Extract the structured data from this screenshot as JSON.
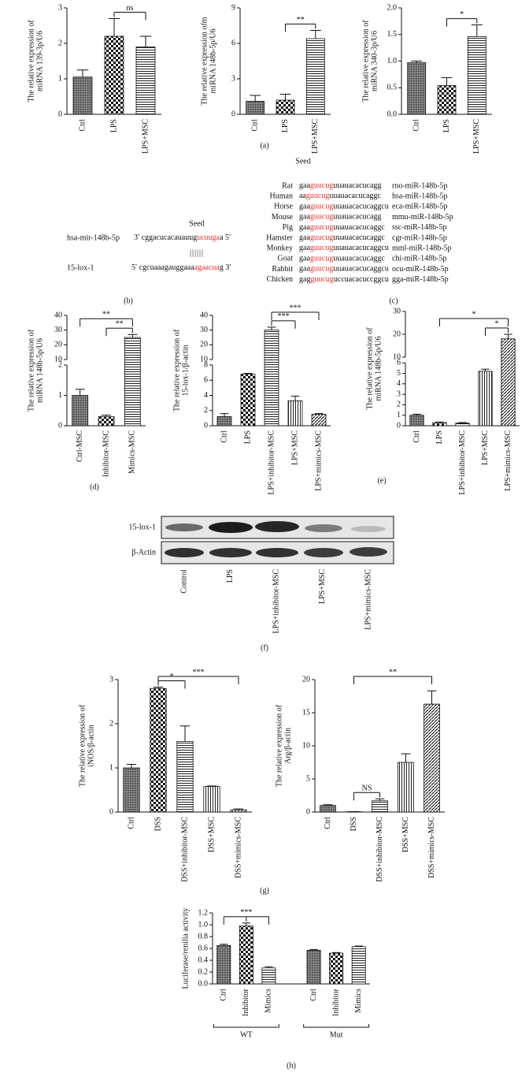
{
  "chart_data": [
    {
      "type": "bar",
      "ylabel": [
        "The relative expression of",
        "miRNA 139-3p/U6"
      ],
      "categories": [
        "Ctrl",
        "LPS",
        "LPS+MSC"
      ],
      "values": [
        1.05,
        2.2,
        1.9
      ],
      "errors": [
        0.2,
        0.5,
        0.3
      ],
      "patterns": [
        "dots",
        "checker",
        "hlines"
      ],
      "ylim": [
        0,
        3
      ],
      "yticks": [
        0,
        1,
        2,
        3
      ],
      "significance": [
        {
          "between": [
            1,
            2
          ],
          "label": "ns"
        }
      ]
    },
    {
      "type": "bar",
      "ylabel": [
        "The relative expression ofm",
        "miRNA 148b-5p/U6"
      ],
      "categories": [
        "Ctrl",
        "LPS",
        "LPS+MSC"
      ],
      "values": [
        1.1,
        1.2,
        6.4
      ],
      "errors": [
        0.5,
        0.5,
        0.7
      ],
      "patterns": [
        "dots",
        "checker",
        "hlines"
      ],
      "ylim": [
        0,
        9
      ],
      "yticks": [
        0,
        3,
        6,
        9
      ],
      "significance": [
        {
          "between": [
            1,
            2
          ],
          "label": "**"
        }
      ]
    },
    {
      "type": "bar",
      "ylabel": [
        "The relative expression of",
        "miRNA 340-3p/U6"
      ],
      "categories": [
        "Ctrl",
        "LPS",
        "LPS+MSC"
      ],
      "values": [
        0.97,
        0.54,
        1.46
      ],
      "errors": [
        0.03,
        0.15,
        0.22
      ],
      "patterns": [
        "dots",
        "checker",
        "hlines"
      ],
      "ylim": [
        0,
        2
      ],
      "yticks": [
        {
          "value": 0,
          "label": "0.0"
        },
        0.5,
        {
          "value": 1,
          "label": "1.0"
        },
        1.5,
        {
          "value": 2,
          "label": "2.0"
        }
      ],
      "significance": [
        {
          "between": [
            1,
            2
          ],
          "label": "*"
        }
      ]
    },
    {
      "type": "bar",
      "ylabel": [
        "The relative expression of",
        "miRNA 148b-5p/U6"
      ],
      "categories": [
        "Ctrl-MSC",
        "Inhibitor-MSC",
        "Mimics-MSC"
      ],
      "values": [
        1.0,
        0.3,
        25
      ],
      "errors": [
        0.2,
        0.05,
        2
      ],
      "patterns": [
        "dots",
        "checker",
        "hlines"
      ],
      "ylim": [
        0,
        40
      ],
      "ybreak": [
        2,
        10
      ],
      "yticks": [
        0,
        1,
        2,
        10,
        20,
        30,
        40
      ],
      "significance": [
        {
          "between": [
            1,
            2
          ],
          "label": "**"
        },
        {
          "between": [
            0,
            2
          ],
          "label": "**"
        }
      ]
    },
    {
      "type": "bar",
      "ylabel": [
        "The relative expression of",
        "15-lox-1/β-actin"
      ],
      "categories": [
        "Ctrl",
        "LPS",
        "LPS+inhibitor-MSC",
        "LPS+MSC",
        "LPS+mimics-MSC"
      ],
      "values": [
        1.2,
        6.8,
        30,
        3.3,
        1.5
      ],
      "errors": [
        0.4,
        0.1,
        2,
        0.6,
        0.1
      ],
      "patterns": [
        "dots",
        "checker",
        "hlines",
        "vlines",
        "diag"
      ],
      "ylim": [
        0,
        40
      ],
      "ybreak": [
        8,
        10
      ],
      "yticks": [
        0,
        2,
        4,
        6,
        8,
        10,
        20,
        30,
        40
      ],
      "significance": [
        {
          "between": [
            2,
            3
          ],
          "label": "***"
        },
        {
          "between": [
            2,
            4
          ],
          "label": "***"
        }
      ]
    },
    {
      "type": "bar",
      "ylabel": [
        "The relative expression of",
        "miRNA 148b-5p/U6"
      ],
      "categories": [
        "Ctrl",
        "LPS",
        "LPS+inhibitor-MSC",
        "LPS+MSC",
        "LPS+mimics-MSC"
      ],
      "values": [
        1.0,
        0.3,
        0.25,
        5.2,
        18
      ],
      "errors": [
        0.1,
        0.05,
        0.05,
        0.2,
        2
      ],
      "patterns": [
        "dots",
        "checker",
        "hlines",
        "vlines",
        "diag"
      ],
      "ylim": [
        0,
        30
      ],
      "ybreak": [
        6,
        10
      ],
      "yticks": [
        0,
        1,
        2,
        3,
        4,
        5,
        6,
        10,
        20,
        30
      ],
      "significance": [
        {
          "between": [
            3,
            4
          ],
          "label": "*"
        },
        {
          "between": [
            1,
            4
          ],
          "label": "*"
        }
      ]
    },
    {
      "type": "bar",
      "ylabel": [
        "The relative expression of",
        "iNOS/β-actin"
      ],
      "categories": [
        "Ctrl",
        "DSS",
        "DSS+inhibitor-MSC",
        "DSS+MSC",
        "DSS+mimics-MSC"
      ],
      "values": [
        1.0,
        2.8,
        1.6,
        0.58,
        0.05
      ],
      "errors": [
        0.08,
        0.03,
        0.35,
        0.01,
        0.02
      ],
      "patterns": [
        "dots",
        "checker",
        "hlines",
        "vlines",
        "diag"
      ],
      "ylim": [
        0,
        3
      ],
      "yticks": [
        0,
        1,
        2,
        3
      ],
      "significance": [
        {
          "between": [
            1,
            2
          ],
          "label": "*"
        },
        {
          "between": [
            1,
            4
          ],
          "label": "***"
        }
      ]
    },
    {
      "type": "bar",
      "ylabel": [
        "The relative expression of",
        "Arg/β-actin"
      ],
      "categories": [
        "Ctrl",
        "DSS",
        "DSS+inhibitor-MSC",
        "DSS+MSC",
        "DSS+mimics-MSC"
      ],
      "values": [
        1.0,
        0.05,
        1.7,
        7.5,
        16.3
      ],
      "errors": [
        0.1,
        0.02,
        0.3,
        1.3,
        2
      ],
      "patterns": [
        "dots",
        "checker",
        "hlines",
        "vlines",
        "diag"
      ],
      "ylim": [
        0,
        20
      ],
      "yticks": [
        0,
        5,
        10,
        15,
        20
      ],
      "significance": [
        {
          "between": [
            1,
            2
          ],
          "label": "NS"
        },
        {
          "between": [
            1,
            4
          ],
          "label": "**"
        }
      ]
    },
    {
      "type": "bar",
      "ylabel": [
        "Luciferase/renilla activity"
      ],
      "categories": [
        "Ctrl",
        "Inhibitor",
        "Mimics",
        "Ctrl",
        "Inhibitor",
        "Mimics"
      ],
      "values": [
        0.65,
        0.98,
        0.27,
        0.57,
        0.52,
        0.63
      ],
      "errors": [
        0.02,
        0.05,
        0.02,
        0.01,
        0.01,
        0.01
      ],
      "patterns": [
        "dots",
        "checker",
        "hlines",
        "dots",
        "checker",
        "hlines"
      ],
      "groups": [
        {
          "label": "WT",
          "size": 3
        },
        {
          "label": "Mut",
          "size": 3
        }
      ],
      "ylim": [
        0,
        1.2
      ],
      "yticks": [
        {
          "value": 0,
          "label": "0.0"
        },
        0.2,
        0.4,
        0.6,
        0.8,
        {
          "value": 1,
          "label": "1.0"
        },
        1.2
      ],
      "significance": [
        {
          "between": [
            0,
            1,
            2
          ],
          "label": "***"
        }
      ]
    }
  ],
  "panel_labels": [
    "(a)",
    "(b)",
    "(c)",
    "(d)",
    "(e)",
    "(f)",
    "(g)",
    "(h)"
  ],
  "sequence": {
    "seed": "Seed",
    "highlight_color": "#e8312f",
    "pairing": "||||||",
    "rows": [
      {
        "name": "hsa-mir-148b-5p",
        "parts": [
          "3′ cggacucacauauug",
          "ucuuga",
          "a 5′"
        ]
      },
      {
        "name": "15-lox-1",
        "parts": [
          "5′ cgcuaaagauggaaa",
          "agaacua",
          "g 3′"
        ]
      }
    ]
  },
  "alignment": {
    "seed": "Seed",
    "highlight_color": "#e8312f",
    "rows": [
      {
        "species": "Rat",
        "parts": [
          "gaa",
          "guucug",
          "uuauacacucagg"
        ],
        "id": "rno-miR-148b-5p"
      },
      {
        "species": "Human",
        "parts": [
          "aa",
          "guucug",
          "uuauacacucaggc"
        ],
        "id": "hsa-miR-148b-5p"
      },
      {
        "species": "Horse",
        "parts": [
          "gaa",
          "guucug",
          "uuauacacucaggcu"
        ],
        "id": "eca-miR-148b-5p"
      },
      {
        "species": "Mouse",
        "parts": [
          "gaa",
          "guucug",
          "uuauacacucagg"
        ],
        "id": "mmu-miR-148b-5p"
      },
      {
        "species": "Pig",
        "parts": [
          "gaa",
          "guucug",
          "uuauacacucaggc"
        ],
        "id": "ssc-miR-148b-5p"
      },
      {
        "species": "Hamster",
        "parts": [
          "gaa",
          "guucug",
          "uuauacacucaggc"
        ],
        "id": "cgr-miR-148b-5p"
      },
      {
        "species": "Monkey",
        "parts": [
          "gaa",
          "guucug",
          "uuauacacucaggcu"
        ],
        "id": "mml-miR-148b-5p"
      },
      {
        "species": "Goat",
        "parts": [
          "gaa",
          "guucug",
          "uuauacacucaggc"
        ],
        "id": "chi-miR-148b-5p"
      },
      {
        "species": "Rabbit",
        "parts": [
          "gaa",
          "guucug",
          "uuauacacucaggcu"
        ],
        "id": "ocu-miR-148b-5p"
      },
      {
        "species": "Chicken",
        "parts": [
          "gag",
          "guucug",
          "uccuacacuccggcu"
        ],
        "id": "gga-miR-148b-5p"
      }
    ]
  },
  "blot": {
    "rows": [
      "15-lox-1",
      "β-Actin"
    ],
    "lanes": [
      "Control",
      "LPS",
      "LPS+inhibitor-MSC",
      "LPS+MSC",
      "LPS+mimics-MSC"
    ]
  }
}
